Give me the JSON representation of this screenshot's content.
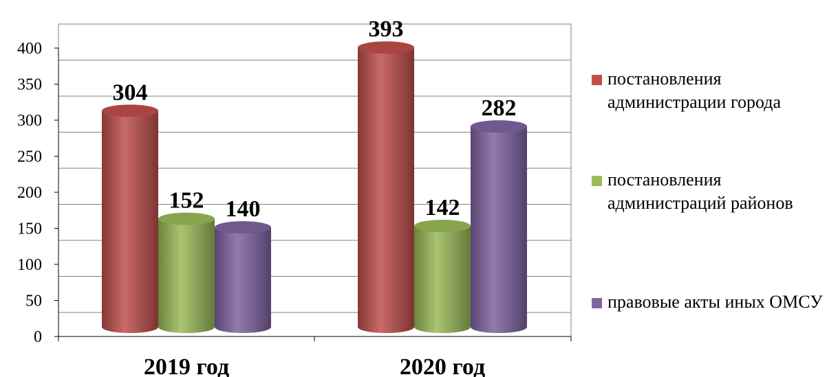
{
  "chart_data": {
    "type": "bar",
    "categories": [
      "2019 год",
      "2020 год"
    ],
    "series": [
      {
        "name": "постановления администрации города",
        "values": [
          304,
          393
        ],
        "color": "#C0504D"
      },
      {
        "name": "постановления администраций районов",
        "values": [
          152,
          142
        ],
        "color": "#9BBB59"
      },
      {
        "name": "правовые акты иных ОМСУ",
        "values": [
          140,
          282
        ],
        "color": "#8064A2"
      }
    ],
    "ylim": [
      0,
      400
    ],
    "yticks": [
      0,
      50,
      100,
      150,
      200,
      250,
      300,
      350,
      400
    ],
    "grid": true,
    "legend": "right",
    "bar_shape": "cylinder"
  }
}
